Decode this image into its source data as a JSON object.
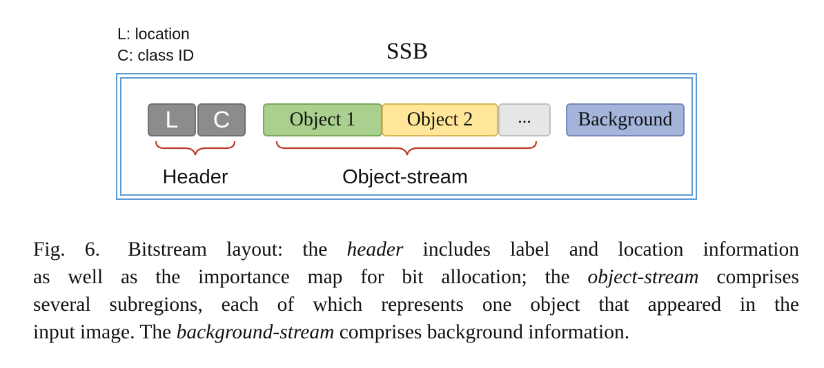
{
  "legend": {
    "location": "L: location",
    "class_id": "C: class ID"
  },
  "diagram": {
    "title": "SSB",
    "blocks": {
      "location": "L",
      "class_id": "C",
      "object_1": "Object 1",
      "object_2": "Object 2",
      "more": "...",
      "background": "Background"
    },
    "brace_labels": {
      "header": "Header",
      "object_stream": "Object-stream"
    },
    "colors": {
      "frame": "#5b9bd5",
      "header_blocks": "#8c8c8c",
      "object_1": "#a9d08e",
      "object_2": "#ffe699",
      "more": "#e7e6e6",
      "background": "#a4b4db",
      "brace": "#c0392b"
    }
  },
  "caption": {
    "label": "Fig. 6.",
    "line1_a": "Bitstream layout: the ",
    "line1_em": "header",
    "line1_b": " includes label and location information",
    "line2_a": "as well as the importance map for bit allocation; the ",
    "line2_em": "object-stream",
    "line2_b": " comprises",
    "line3": "several subregions, each of which represents one object that appeared in the",
    "line4_a": "input image. The ",
    "line4_em": "background-stream",
    "line4_b": " comprises background information."
  }
}
